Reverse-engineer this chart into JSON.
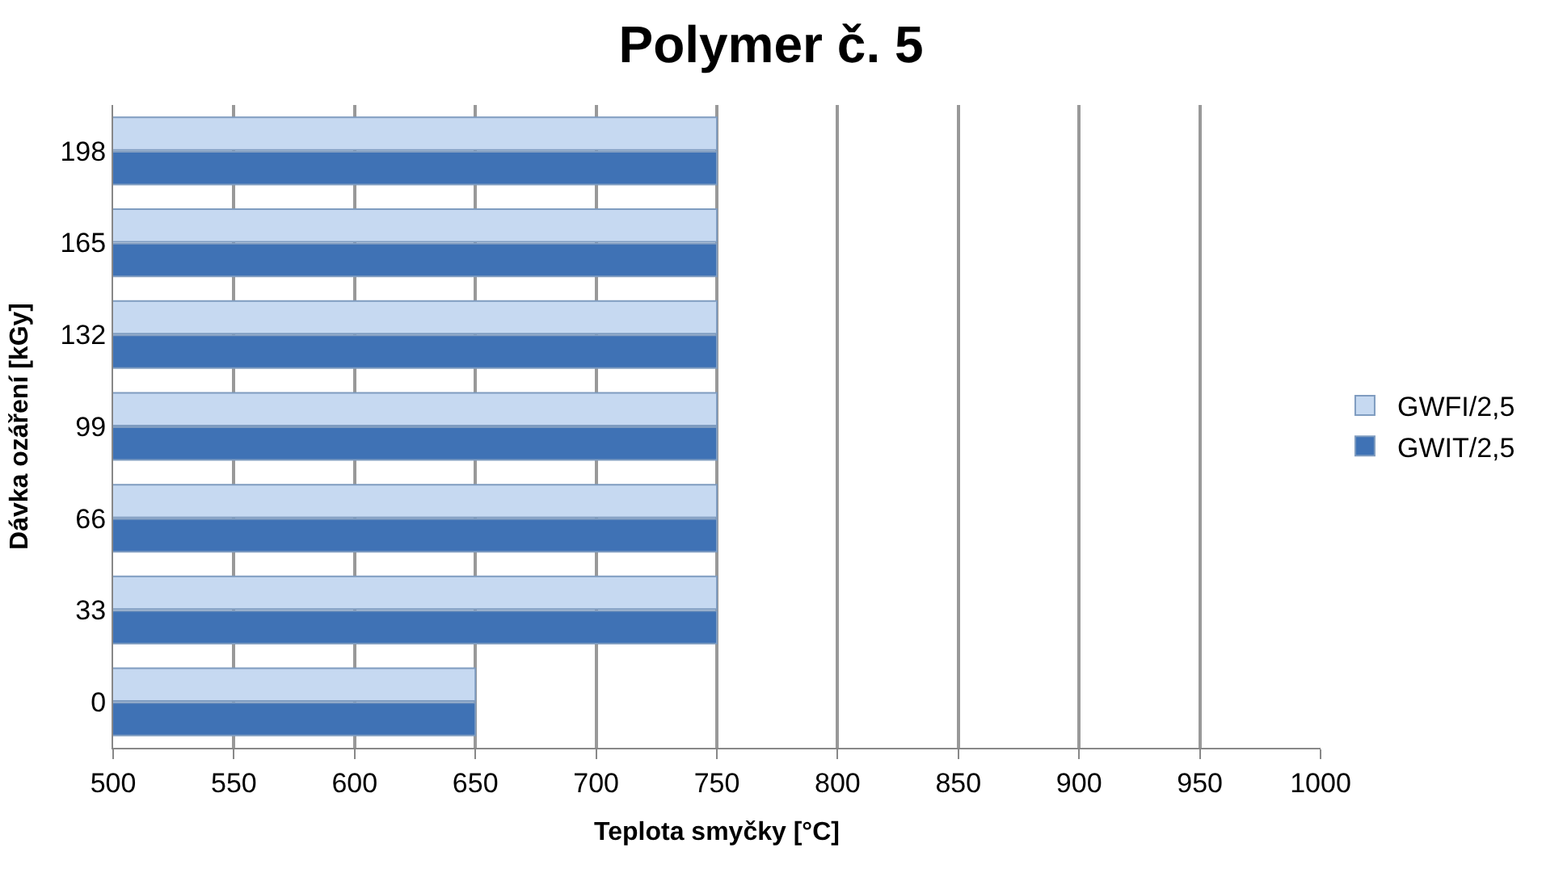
{
  "chart_data": {
    "type": "bar",
    "orientation": "horizontal",
    "title": "Polymer č. 5",
    "xlabel": "Teplota smyčky [°C]",
    "ylabel": "Dávka ozáření [kGy]",
    "categories": [
      "198",
      "165",
      "132",
      "99",
      "66",
      "33",
      "0"
    ],
    "series": [
      {
        "name": "GWFI/2,5",
        "color": "#c6d9f1",
        "values": [
          750,
          750,
          750,
          750,
          750,
          750,
          650
        ]
      },
      {
        "name": "GWIT/2,5",
        "color": "#3f72b5",
        "values": [
          750,
          750,
          750,
          750,
          750,
          750,
          650
        ]
      }
    ],
    "xlim": [
      500,
      1000
    ],
    "xticks": [
      500,
      550,
      600,
      650,
      700,
      750,
      800,
      850,
      900,
      950,
      1000
    ],
    "grid": "x",
    "legend": "right"
  }
}
